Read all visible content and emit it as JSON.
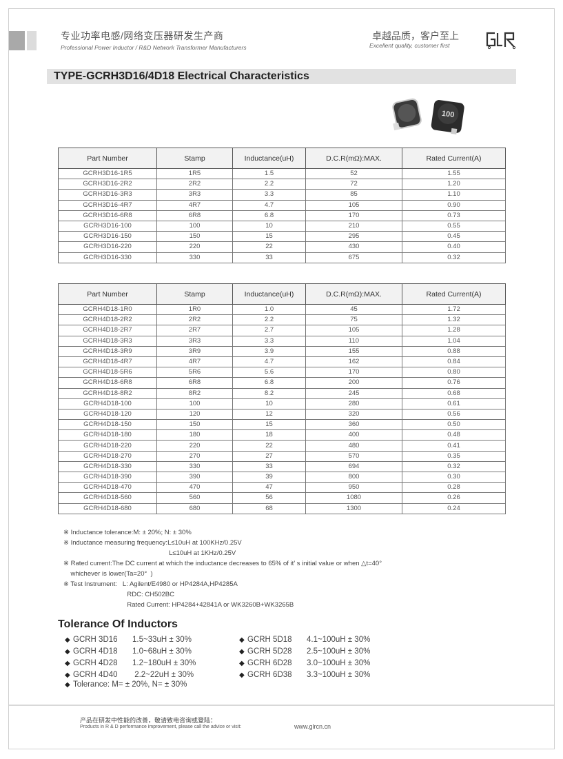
{
  "header": {
    "company_cn": "专业功率电感/网络变压器研发生产商",
    "company_en": "Professional Power Inductor / R&D Network Transformer Manufacturers",
    "slogan_cn": "卓越品质，客户至上",
    "slogan_en": "Excellent quality, customer first",
    "logo_text": "GLR"
  },
  "title": "TYPE-GCRH3D16/4D18 Electrical Characteristics",
  "product_image": {
    "stamp": "100"
  },
  "columns": [
    "Part Number",
    "Stamp",
    "Inductance(uH)",
    "D.C.R(mΩ):MAX.",
    "Rated Current(A)"
  ],
  "table1": [
    [
      "GCRH3D16-1R5",
      "1R5",
      "1.5",
      "52",
      "1.55"
    ],
    [
      "GCRH3D16-2R2",
      "2R2",
      "2.2",
      "72",
      "1.20"
    ],
    [
      "GCRH3D16-3R3",
      "3R3",
      "3.3",
      "85",
      "1.10"
    ],
    [
      "GCRH3D16-4R7",
      "4R7",
      "4.7",
      "105",
      "0.90"
    ],
    [
      "GCRH3D16-6R8",
      "6R8",
      "6.8",
      "170",
      "0.73"
    ],
    [
      "GCRH3D16-100",
      "100",
      "10",
      "210",
      "0.55"
    ],
    [
      "GCRH3D16-150",
      "150",
      "15",
      "295",
      "0.45"
    ],
    [
      "GCRH3D16-220",
      "220",
      "22",
      "430",
      "0.40"
    ],
    [
      "GCRH3D16-330",
      "330",
      "33",
      "675",
      "0.32"
    ]
  ],
  "table2": [
    [
      "GCRH4D18-1R0",
      "1R0",
      "1.0",
      "45",
      "1.72"
    ],
    [
      "GCRH4D18-2R2",
      "2R2",
      "2.2",
      "75",
      "1.32"
    ],
    [
      "GCRH4D18-2R7",
      "2R7",
      "2.7",
      "105",
      "1.28"
    ],
    [
      "GCRH4D18-3R3",
      "3R3",
      "3.3",
      "110",
      "1.04"
    ],
    [
      "GCRH4D18-3R9",
      "3R9",
      "3.9",
      "155",
      "0.88"
    ],
    [
      "GCRH4D18-4R7",
      "4R7",
      "4.7",
      "162",
      "0.84"
    ],
    [
      "GCRH4D18-5R6",
      "5R6",
      "5.6",
      "170",
      "0.80"
    ],
    [
      "GCRH4D18-6R8",
      "6R8",
      "6.8",
      "200",
      "0.76"
    ],
    [
      "GCRH4D18-8R2",
      "8R2",
      "8.2",
      "245",
      "0.68"
    ],
    [
      "GCRH4D18-100",
      "100",
      "10",
      "280",
      "0.61"
    ],
    [
      "GCRH4D18-120",
      "120",
      "12",
      "320",
      "0.56"
    ],
    [
      "GCRH4D18-150",
      "150",
      "15",
      "360",
      "0.50"
    ],
    [
      "GCRH4D18-180",
      "180",
      "18",
      "400",
      "0.48"
    ],
    [
      "GCRH4D18-220",
      "220",
      "22",
      "480",
      "0.41"
    ],
    [
      "GCRH4D18-270",
      "270",
      "27",
      "570",
      "0.35"
    ],
    [
      "GCRH4D18-330",
      "330",
      "33",
      "694",
      "0.32"
    ],
    [
      "GCRH4D18-390",
      "390",
      "39",
      "800",
      "0.30"
    ],
    [
      "GCRH4D18-470",
      "470",
      "47",
      "950",
      "0.28"
    ],
    [
      "GCRH4D18-560",
      "560",
      "56",
      "1080",
      "0.26"
    ],
    [
      "GCRH4D18-680",
      "680",
      "68",
      "1300",
      "0.24"
    ]
  ],
  "notes": [
    "※ Inductance tolerance:M: ± 20%; N: ± 30%",
    "※ Inductance measuring frequency:L≤10uH at 100KHz/0.25V",
    "                                                          L≤10uH at 1KHz/0.25V",
    "※ Rated current:The DC current at which the inductance decreases to 65% of it’ s initial value or when △t=40°",
    "    whichever is lower(Ta=20°  )",
    "※ Test Instrument:   L: Agilent/E4980 or HP4284A,HP4285A",
    "                                   RDC: CH502BC",
    "                                   Rated Current: HP4284+42841A or WK3260B+WK3265B"
  ],
  "tolerance": {
    "title": "Tolerance Of Inductors",
    "left": [
      {
        "model": "GCRH 3D16",
        "range": "1.5~33uH ± 30%"
      },
      {
        "model": "GCRH 4D18",
        "range": "1.0~68uH ± 30%"
      },
      {
        "model": "GCRH 4D28",
        "range": "1.2~180uH ± 30%"
      },
      {
        "model": "GCRH 4D40",
        "range": " 2.2~22uH ± 30%"
      }
    ],
    "right": [
      {
        "model": "GCRH 5D18",
        "range": "4.1~100uH ± 30%"
      },
      {
        "model": "GCRH 5D28",
        "range": "2.5~100uH ± 30%"
      },
      {
        "model": "GCRH 6D28",
        "range": "3.0~100uH ± 30%"
      },
      {
        "model": "GCRH 6D38",
        "range": "3.3~100uH ± 30%"
      }
    ],
    "summary": "Tolerance: M= ± 20%, N= ± 30%"
  },
  "footer": {
    "cn": "产品在研发中性能的改善，敬请致电咨询或登陆：",
    "en": "Products in R & D performance improvement, please call the advice or visit:",
    "url": "www.glrcn.cn"
  }
}
